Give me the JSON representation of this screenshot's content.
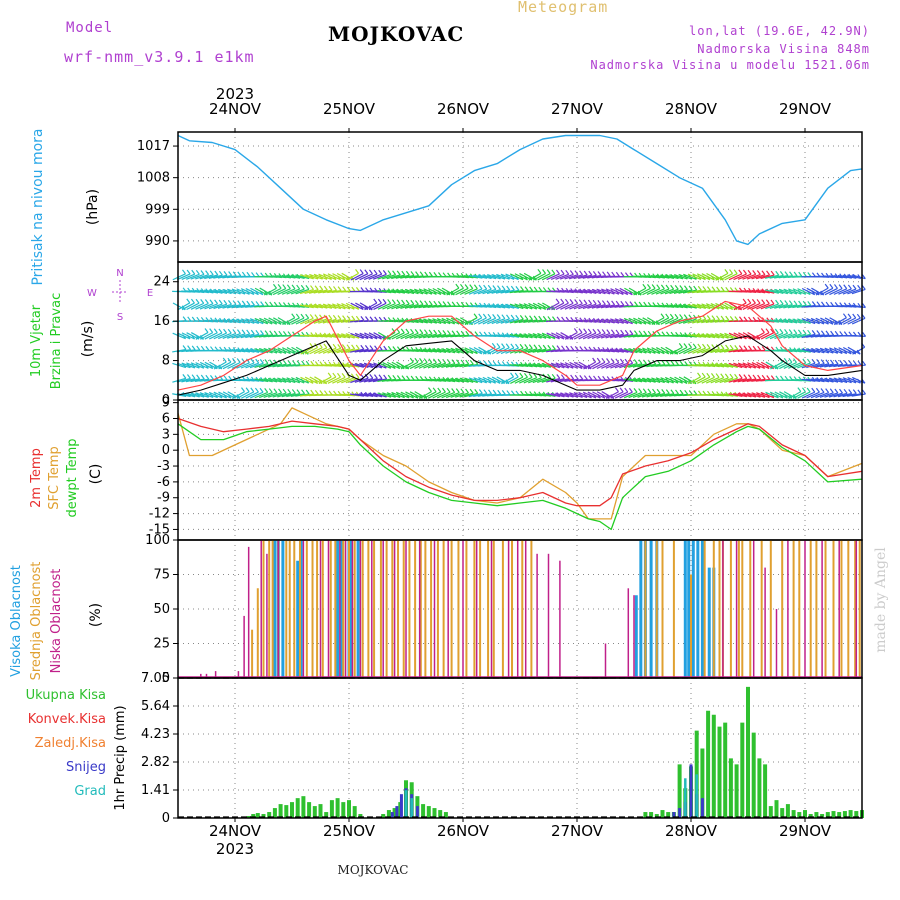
{
  "header": {
    "meteogram_label": "Meteogram",
    "model_label": "Model",
    "model_name": "wrf-nmm_v3.9.1 e1km",
    "station": "MOJKOVAC",
    "lonlat": "lon,lat (19.6E, 42.9N)",
    "altitude": "Nadmorska Visina 848m",
    "model_altitude": "Nadmorska Visina u modelu 1521.06m",
    "footer_station": "MOJKOVAC",
    "watermark": "made by Angel"
  },
  "colors": {
    "pressure": "#2aa7e8",
    "sfc_temp": "#e0a030",
    "temp_2m": "#e83030",
    "dewpt": "#22cc22",
    "high_cloud": "#22a0e0",
    "mid_cloud": "#e0a030",
    "low_cloud": "#c0208a",
    "total_precip": "#2fc02f",
    "snow": "#3a3ac8",
    "hail": "#22bbbb",
    "wind_speed": "#000000",
    "wind_gust": "#ff4444",
    "header_purple": "#b040d0",
    "header_gold": "#e0c070"
  },
  "chart_data": [
    {
      "type": "line",
      "title": "Pritisak na nivou mora",
      "ylabel": "(hPa)",
      "x_start_day": 23.5,
      "x_end_day": 29.5,
      "x_ticks": [
        "24NOV",
        "25NOV",
        "26NOV",
        "27NOV",
        "28NOV",
        "29NOV"
      ],
      "x_tick_days": [
        24,
        25,
        26,
        27,
        28,
        29
      ],
      "top_year": "2023",
      "bottom_year": "2023",
      "ylim": [
        984,
        1021
      ],
      "y_ticks": [
        990,
        999,
        1008,
        1017
      ],
      "series": [
        {
          "name": "Pritisak na nivou mora",
          "x": [
            23.5,
            23.6,
            23.8,
            24.0,
            24.2,
            24.4,
            24.6,
            24.8,
            25.0,
            25.1,
            25.3,
            25.5,
            25.7,
            25.9,
            26.1,
            26.3,
            26.5,
            26.7,
            26.9,
            27.0,
            27.2,
            27.35,
            27.5,
            27.7,
            27.9,
            28.1,
            28.3,
            28.4,
            28.5,
            28.6,
            28.8,
            29.0,
            29.2,
            29.4,
            29.5
          ],
          "values": [
            1020,
            1018.5,
            1018,
            1016,
            1011,
            1005,
            999,
            996,
            993.5,
            993,
            996,
            998,
            1000,
            1006,
            1010,
            1012,
            1016,
            1019,
            1020,
            1020,
            1020,
            1019,
            1016,
            1012,
            1008,
            1005,
            996,
            990,
            989,
            992,
            995,
            996,
            1005,
            1010,
            1010.5
          ]
        }
      ]
    },
    {
      "type": "line",
      "title": "10m Vjetar Brzina i Pravac",
      "ylabel": "(m/s)",
      "ylim": [
        0,
        28
      ],
      "y_ticks": [
        0,
        8,
        16,
        24
      ],
      "compass": [
        "N",
        "W",
        "E",
        "S"
      ],
      "series": [
        {
          "name": "brzina",
          "x": [
            23.5,
            23.7,
            23.9,
            24.1,
            24.3,
            24.5,
            24.7,
            24.8,
            25.0,
            25.1,
            25.3,
            25.5,
            25.7,
            25.9,
            26.1,
            26.3,
            26.5,
            26.7,
            26.9,
            27.0,
            27.2,
            27.4,
            27.5,
            27.7,
            27.9,
            28.1,
            28.3,
            28.5,
            28.7,
            28.8,
            29.0,
            29.2,
            29.5
          ],
          "values": [
            1,
            2,
            3.5,
            5,
            7,
            9,
            11,
            12,
            5,
            4,
            8,
            11,
            11.5,
            12,
            8,
            6,
            6,
            5,
            3,
            2,
            2,
            3,
            6,
            8,
            8,
            9,
            12,
            13,
            10,
            8,
            5,
            5,
            6
          ]
        },
        {
          "name": "udari",
          "x": [
            23.5,
            23.7,
            23.9,
            24.1,
            24.3,
            24.5,
            24.7,
            24.8,
            25.0,
            25.1,
            25.3,
            25.5,
            25.7,
            25.9,
            26.1,
            26.3,
            26.5,
            26.7,
            26.9,
            27.0,
            27.2,
            27.4,
            27.5,
            27.7,
            27.9,
            28.1,
            28.3,
            28.5,
            28.7,
            28.8,
            29.0,
            29.2,
            29.5
          ],
          "values": [
            2,
            3,
            5,
            8,
            10,
            13,
            16,
            17,
            8,
            5,
            12,
            16,
            17,
            17,
            13,
            10,
            10,
            8,
            5,
            3,
            3,
            5,
            10,
            14,
            16,
            17,
            20,
            19,
            15,
            11,
            7,
            6,
            7
          ]
        }
      ]
    },
    {
      "type": "line",
      "title_lines": [
        "2m Temp",
        "SFC Temp",
        "dewpt Temp"
      ],
      "ylabel": "(C)",
      "ylim": [
        -17,
        9.5
      ],
      "y_ticks": [
        -15,
        -12,
        -9,
        -6,
        -3,
        0,
        3,
        6,
        9
      ],
      "series": [
        {
          "name": "2m Temp",
          "x": [
            23.5,
            23.7,
            23.9,
            24.1,
            24.3,
            24.5,
            24.7,
            24.9,
            25.0,
            25.1,
            25.3,
            25.5,
            25.7,
            25.9,
            26.1,
            26.3,
            26.5,
            26.7,
            26.9,
            27.0,
            27.1,
            27.2,
            27.3,
            27.4,
            27.6,
            27.8,
            28.0,
            28.2,
            28.4,
            28.5,
            28.6,
            28.8,
            29.0,
            29.2,
            29.5
          ],
          "values": [
            6,
            4.5,
            3.5,
            4,
            4.5,
            5.5,
            5,
            4.5,
            4,
            2,
            -2,
            -5,
            -7,
            -8.5,
            -9.5,
            -9.5,
            -9,
            -8,
            -10,
            -10.5,
            -10.5,
            -10.5,
            -9,
            -4.5,
            -3,
            -2,
            -0.5,
            2,
            4,
            5,
            4.5,
            1,
            -1,
            -5,
            -4
          ]
        },
        {
          "name": "SFC Temp",
          "x": [
            23.5,
            23.6,
            23.8,
            24.0,
            24.2,
            24.4,
            24.5,
            24.6,
            24.8,
            25.0,
            25.1,
            25.3,
            25.5,
            25.7,
            25.9,
            26.1,
            26.3,
            26.5,
            26.7,
            26.9,
            27.0,
            27.1,
            27.2,
            27.3,
            27.4,
            27.6,
            27.8,
            28.0,
            28.2,
            28.4,
            28.5,
            28.6,
            28.8,
            29.0,
            29.2,
            29.5
          ],
          "values": [
            7,
            -1,
            -1,
            1,
            3,
            5,
            8,
            7,
            5,
            4,
            2,
            -1,
            -3,
            -6,
            -8,
            -9.5,
            -10,
            -9,
            -5.5,
            -8,
            -10,
            -13,
            -13,
            -13,
            -5,
            -1,
            -1,
            -1,
            3,
            5,
            5,
            4,
            0,
            -1,
            -5,
            -2.5
          ]
        },
        {
          "name": "dewpt Temp",
          "x": [
            23.5,
            23.7,
            23.9,
            24.1,
            24.3,
            24.5,
            24.7,
            24.9,
            25.0,
            25.1,
            25.3,
            25.5,
            25.7,
            25.9,
            26.1,
            26.3,
            26.5,
            26.7,
            26.9,
            27.0,
            27.1,
            27.2,
            27.3,
            27.4,
            27.6,
            27.8,
            28.0,
            28.2,
            28.4,
            28.5,
            28.6,
            28.8,
            29.0,
            29.2,
            29.5
          ],
          "values": [
            5,
            2,
            2,
            3.5,
            4,
            4.5,
            4.5,
            4,
            3.5,
            1,
            -3,
            -6,
            -8,
            -9.5,
            -10,
            -10.5,
            -10,
            -9.5,
            -11,
            -12,
            -13,
            -13.5,
            -15,
            -9,
            -5,
            -4,
            -2,
            1,
            3.5,
            4.5,
            4,
            0.5,
            -2,
            -6,
            -5.5
          ]
        }
      ]
    },
    {
      "type": "bar",
      "title_lines": [
        "Visoka Oblacnost",
        "Srednja Oblacnost",
        "Niska Oblacnost"
      ],
      "ylabel": "(%)",
      "ylim": [
        0,
        100
      ],
      "y_ticks": [
        0,
        25,
        50,
        75,
        100
      ],
      "series": [
        {
          "name": "Visoka Oblacnost",
          "x": [
            24.35,
            24.38,
            24.42,
            24.55,
            24.58,
            24.9,
            24.93,
            25.0,
            25.02,
            25.08,
            27.52,
            27.56,
            27.6,
            27.65,
            27.7,
            27.95,
            27.98,
            28.02,
            28.06,
            28.1,
            28.16,
            28.2
          ],
          "values": [
            100,
            100,
            100,
            85,
            100,
            100,
            100,
            100,
            100,
            100,
            60,
            100,
            100,
            100,
            100,
            100,
            100,
            100,
            100,
            100,
            80,
            80
          ]
        },
        {
          "name": "Srednja Oblacnost",
          "x": [
            24.15,
            24.2,
            24.25,
            24.3,
            24.33,
            24.38,
            24.45,
            24.48,
            24.52,
            24.57,
            24.63,
            24.68,
            24.72,
            24.77,
            24.84,
            24.88,
            24.95,
            25.0,
            25.05,
            25.12,
            25.17,
            25.22,
            25.28,
            25.33,
            25.38,
            25.43,
            25.48,
            25.53,
            25.58,
            25.63,
            25.67,
            25.72,
            25.78,
            25.83,
            25.9,
            25.96,
            26.03,
            26.1,
            26.15,
            26.22,
            26.27,
            26.35,
            26.43,
            26.52,
            26.6,
            27.6,
            27.7,
            27.75,
            27.85,
            28.0,
            28.12,
            28.2,
            28.25,
            28.28,
            28.35,
            28.42,
            28.45,
            28.52,
            28.62,
            28.7,
            28.8,
            28.9,
            28.95,
            29.05,
            29.1,
            29.18,
            29.25,
            29.32,
            29.38,
            29.44,
            29.48
          ],
          "values": [
            35,
            65,
            100,
            100,
            100,
            100,
            100,
            100,
            100,
            100,
            100,
            100,
            100,
            100,
            100,
            100,
            100,
            100,
            100,
            100,
            100,
            100,
            100,
            100,
            100,
            100,
            100,
            100,
            100,
            100,
            100,
            100,
            100,
            100,
            100,
            100,
            100,
            100,
            100,
            100,
            100,
            100,
            100,
            100,
            100,
            100,
            100,
            100,
            100,
            75,
            100,
            100,
            100,
            100,
            100,
            100,
            100,
            100,
            100,
            100,
            100,
            100,
            100,
            100,
            100,
            100,
            100,
            100,
            100,
            100,
            100
          ]
        },
        {
          "name": "Niska Oblacnost",
          "x": [
            23.7,
            23.75,
            23.83,
            24.03,
            24.08,
            24.12,
            24.23,
            24.28,
            24.38,
            24.6,
            24.75,
            24.82,
            24.92,
            24.97,
            25.03,
            25.1,
            25.2,
            25.3,
            25.4,
            25.5,
            25.62,
            25.75,
            25.87,
            26.0,
            26.12,
            26.25,
            26.4,
            26.48,
            26.55,
            26.65,
            26.75,
            26.85,
            27.25,
            27.45,
            27.5,
            28.28,
            28.4,
            28.55,
            28.65,
            28.75,
            28.85,
            29.0,
            29.15,
            29.3,
            29.45
          ],
          "values": [
            3,
            3,
            5,
            5,
            45,
            95,
            100,
            90,
            100,
            100,
            100,
            100,
            100,
            100,
            100,
            100,
            100,
            100,
            100,
            100,
            100,
            100,
            100,
            100,
            100,
            100,
            100,
            100,
            100,
            90,
            90,
            85,
            25,
            65,
            60,
            100,
            100,
            100,
            80,
            50,
            100,
            100,
            100,
            100,
            100
          ]
        }
      ]
    },
    {
      "type": "bar",
      "title_lines": [
        "Ukupna Kisa",
        "Konvek.Kisa",
        "Zaledj.Kisa",
        "Snijeg",
        "Grad"
      ],
      "ylabel": "1hr Precip (mm)",
      "ylim": [
        0,
        7.05
      ],
      "y_ticks": [
        0,
        1.41,
        2.82,
        4.23,
        5.64,
        7.05
      ],
      "series": [
        {
          "name": "Ukupna Kisa",
          "x": [
            24.12,
            24.16,
            24.2,
            24.25,
            24.3,
            24.35,
            24.4,
            24.45,
            24.5,
            24.55,
            24.6,
            24.65,
            24.7,
            24.75,
            24.8,
            24.85,
            24.9,
            24.95,
            25.0,
            25.05,
            25.1,
            25.3,
            25.35,
            25.4,
            25.45,
            25.5,
            25.55,
            25.6,
            25.65,
            25.7,
            25.75,
            25.8,
            25.85,
            27.6,
            27.65,
            27.7,
            27.75,
            27.8,
            27.85,
            27.9,
            27.95,
            28.0,
            28.05,
            28.1,
            28.15,
            28.2,
            28.25,
            28.3,
            28.35,
            28.4,
            28.45,
            28.5,
            28.55,
            28.6,
            28.65,
            28.7,
            28.75,
            28.8,
            28.85,
            28.9,
            28.95,
            29.0,
            29.05,
            29.1,
            29.15,
            29.2,
            29.25,
            29.3,
            29.35,
            29.4,
            29.45,
            29.5
          ],
          "values": [
            0.1,
            0.2,
            0.25,
            0.2,
            0.3,
            0.5,
            0.7,
            0.65,
            0.8,
            1.0,
            1.1,
            0.8,
            0.6,
            0.7,
            0.3,
            0.9,
            1.0,
            0.8,
            0.9,
            0.6,
            0.2,
            0.2,
            0.4,
            0.5,
            0.8,
            1.9,
            1.8,
            1.1,
            0.7,
            0.6,
            0.5,
            0.4,
            0.3,
            0.3,
            0.3,
            0.2,
            0.4,
            0.3,
            0.3,
            2.7,
            1.5,
            2.6,
            4.4,
            3.5,
            5.4,
            5.2,
            4.6,
            4.8,
            3.0,
            2.7,
            4.8,
            6.6,
            4.3,
            3.0,
            2.7,
            0.6,
            0.9,
            0.5,
            0.7,
            0.4,
            0.3,
            0.4,
            0.2,
            0.3,
            0.2,
            0.3,
            0.35,
            0.3,
            0.35,
            0.4,
            0.35,
            0.4
          ]
        },
        {
          "name": "Snijeg",
          "x": [
            25.38,
            25.42,
            25.46,
            25.5,
            25.55,
            25.6,
            27.85,
            27.9,
            27.95,
            28.0,
            28.05,
            28.1
          ],
          "values": [
            0.3,
            0.6,
            1.2,
            1.5,
            1.2,
            0.6,
            0.3,
            0.5,
            0.8,
            2.7,
            1.2,
            1.0
          ]
        },
        {
          "name": "Grad",
          "x": [
            25.5,
            25.55,
            27.95,
            28.05
          ],
          "values": [
            1.4,
            1.0,
            2.0,
            2.2
          ]
        }
      ]
    }
  ]
}
